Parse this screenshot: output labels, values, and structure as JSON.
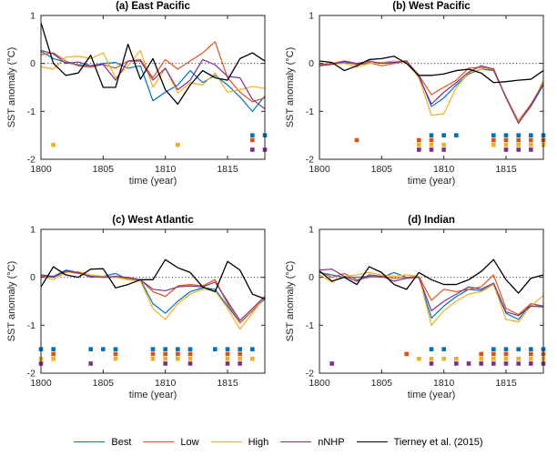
{
  "figure": {
    "ylabel": "SST anomaly (°C)",
    "xlabel": "time (year)",
    "xlim": [
      1800,
      1818
    ],
    "ylim": [
      -2,
      1
    ],
    "xticks": [
      1800,
      1805,
      1810,
      1815
    ],
    "yticks": [
      1,
      0,
      -1,
      -2
    ],
    "zero_line": 0,
    "grid": false,
    "legend_position": "bottom",
    "years": [
      1800,
      1801,
      1802,
      1803,
      1804,
      1805,
      1806,
      1807,
      1808,
      1809,
      1810,
      1811,
      1812,
      1813,
      1814,
      1815,
      1816,
      1817,
      1818
    ]
  },
  "colors": {
    "best": "#0072BD",
    "low": "#D95319",
    "high": "#EDB120",
    "nnhp": "#7E2F8E",
    "tierney": "#000000",
    "axis": "#262626"
  },
  "marker_rows": {
    "best": -1.5,
    "low": -1.6,
    "high": -1.7,
    "nnhp": -1.8
  },
  "legend": {
    "entries": [
      {
        "key": "best",
        "label": "Best"
      },
      {
        "key": "low",
        "label": "Low"
      },
      {
        "key": "high",
        "label": "High"
      },
      {
        "key": "nnhp",
        "label": "nNHP"
      },
      {
        "key": "tierney",
        "label": "Tierney et al. (2015)"
      }
    ]
  },
  "chart_data": [
    {
      "type": "line",
      "title": "(a) East Pacific",
      "series": [
        {
          "key": "best",
          "name": "Best",
          "values": [
            0.25,
            0.1,
            0.02,
            -0.03,
            -0.05,
            0.0,
            0.02,
            -0.1,
            -0.05,
            -0.78,
            -0.6,
            -0.45,
            -0.15,
            -0.4,
            -0.25,
            -0.45,
            -0.7,
            -1.0,
            -0.68
          ]
        },
        {
          "key": "low",
          "name": "Low",
          "values": [
            0.18,
            0.22,
            0.05,
            -0.05,
            -0.08,
            -0.02,
            -0.1,
            0.05,
            0.08,
            -0.3,
            0.08,
            -0.12,
            0.05,
            0.22,
            0.45,
            -0.3,
            -0.6,
            -0.8,
            -0.72
          ]
        },
        {
          "key": "high",
          "name": "High",
          "values": [
            -0.07,
            -0.12,
            0.13,
            0.15,
            0.1,
            0.22,
            -0.3,
            -0.05,
            0.27,
            -0.5,
            -0.1,
            -0.62,
            -0.4,
            -0.45,
            -0.2,
            -0.6,
            -0.55,
            -0.48,
            -0.52
          ]
        },
        {
          "key": "nnhp",
          "name": "nNHP",
          "values": [
            0.27,
            0.2,
            0.0,
            0.03,
            -0.05,
            -0.02,
            -0.35,
            0.05,
            0.05,
            -0.35,
            -0.1,
            -0.55,
            -0.35,
            0.08,
            -0.03,
            -0.27,
            -0.3,
            -0.75,
            -0.95
          ]
        },
        {
          "key": "tierney",
          "name": "Tierney et al. (2015)",
          "values": [
            0.85,
            0.0,
            -0.25,
            -0.2,
            0.17,
            -0.5,
            -0.5,
            0.4,
            -0.33,
            0.1,
            -0.55,
            -0.85,
            -0.45,
            -0.15,
            -0.3,
            -0.35,
            0.1,
            0.22,
            0.05
          ]
        }
      ],
      "significant_years": {
        "best": [
          1817,
          1818
        ],
        "low": [
          1817
        ],
        "high": [
          1801,
          1811
        ],
        "nnhp": [
          1817,
          1818
        ]
      }
    },
    {
      "type": "line",
      "title": "(b) West Pacific",
      "series": [
        {
          "key": "best",
          "name": "Best",
          "values": [
            -0.03,
            0.0,
            0.02,
            -0.02,
            0.0,
            0.02,
            0.02,
            0.05,
            -0.25,
            -0.9,
            -0.72,
            -0.45,
            -0.22,
            -0.12,
            -0.15,
            -0.7,
            -1.22,
            -0.9,
            -0.45
          ]
        },
        {
          "key": "low",
          "name": "Low",
          "values": [
            -0.03,
            0.0,
            0.05,
            -0.03,
            0.02,
            -0.05,
            0.0,
            0.05,
            -0.25,
            -0.65,
            -0.5,
            -0.35,
            -0.1,
            -0.08,
            -0.15,
            -0.7,
            -1.2,
            -0.85,
            -0.4
          ]
        },
        {
          "key": "high",
          "name": "High",
          "values": [
            -0.05,
            -0.02,
            0.0,
            -0.08,
            0.0,
            0.02,
            0.05,
            0.02,
            -0.3,
            -1.08,
            -1.05,
            -0.5,
            -0.2,
            -0.12,
            -0.1,
            -0.72,
            -1.22,
            -0.9,
            -0.35
          ]
        },
        {
          "key": "nnhp",
          "name": "nNHP",
          "values": [
            -0.05,
            -0.02,
            0.05,
            0.0,
            0.05,
            0.0,
            0.02,
            0.05,
            -0.28,
            -0.85,
            -0.6,
            -0.4,
            -0.18,
            -0.05,
            -0.12,
            -0.72,
            -1.25,
            -0.88,
            -0.42
          ]
        },
        {
          "key": "tierney",
          "name": "Tierney et al. (2015)",
          "values": [
            0.05,
            0.02,
            -0.15,
            -0.05,
            0.08,
            0.1,
            0.15,
            0.0,
            -0.25,
            -0.25,
            -0.22,
            -0.15,
            -0.12,
            -0.2,
            -0.4,
            -0.38,
            -0.35,
            -0.33,
            -0.15
          ]
        }
      ],
      "significant_years": {
        "best": [
          1809,
          1810,
          1811,
          1814,
          1815,
          1816,
          1817,
          1818
        ],
        "low": [
          1803,
          1808,
          1809,
          1814,
          1815,
          1816,
          1817,
          1818
        ],
        "high": [
          1808,
          1809,
          1810,
          1814,
          1815,
          1816,
          1817,
          1818
        ],
        "nnhp": [
          1808,
          1809,
          1810,
          1815,
          1816,
          1817
        ]
      }
    },
    {
      "type": "line",
      "title": "(c) West Atlantic",
      "series": [
        {
          "key": "best",
          "name": "Best",
          "values": [
            0.05,
            0.02,
            0.15,
            0.1,
            0.0,
            0.02,
            0.08,
            -0.05,
            -0.05,
            -0.55,
            -0.75,
            -0.5,
            -0.3,
            -0.22,
            -0.25,
            -0.6,
            -0.95,
            -0.7,
            -0.45
          ]
        },
        {
          "key": "low",
          "name": "Low",
          "values": [
            0.03,
            0.0,
            0.12,
            0.08,
            0.02,
            0.0,
            0.0,
            -0.02,
            -0.05,
            -0.3,
            -0.4,
            -0.18,
            -0.15,
            -0.18,
            -0.05,
            -0.55,
            -0.95,
            -0.7,
            -0.42
          ]
        },
        {
          "key": "high",
          "name": "High",
          "values": [
            0.02,
            -0.05,
            0.1,
            0.12,
            0.05,
            0.02,
            0.0,
            -0.05,
            -0.08,
            -0.65,
            -0.88,
            -0.55,
            -0.35,
            -0.25,
            -0.28,
            -0.65,
            -1.08,
            -0.75,
            -0.4
          ]
        },
        {
          "key": "nnhp",
          "name": "nNHP",
          "values": [
            0.05,
            0.0,
            0.13,
            0.1,
            0.02,
            0.0,
            0.02,
            0.0,
            -0.05,
            -0.25,
            -0.28,
            -0.2,
            -0.18,
            -0.2,
            -0.1,
            -0.5,
            -0.9,
            -0.65,
            -0.4
          ]
        },
        {
          "key": "tierney",
          "name": "Tierney et al. (2015)",
          "values": [
            -0.2,
            0.22,
            0.05,
            0.0,
            0.17,
            0.18,
            -0.22,
            -0.15,
            -0.05,
            -0.05,
            0.37,
            0.2,
            0.1,
            -0.2,
            -0.3,
            0.33,
            0.15,
            -0.35,
            -0.45
          ]
        }
      ],
      "significant_years": {
        "best": [
          1800,
          1801,
          1804,
          1805,
          1806,
          1809,
          1810,
          1811,
          1812,
          1814,
          1815,
          1816,
          1817
        ],
        "low": [
          1801,
          1806,
          1809,
          1810,
          1811,
          1812,
          1815,
          1816
        ],
        "high": [
          1800,
          1801,
          1806,
          1809,
          1810,
          1811,
          1812,
          1815,
          1816,
          1817
        ],
        "nnhp": [
          1800,
          1804,
          1810,
          1812,
          1815,
          1816
        ]
      }
    },
    {
      "type": "line",
      "title": "(d) Indian",
      "series": [
        {
          "key": "best",
          "name": "Best",
          "values": [
            0.1,
            0.05,
            0.0,
            0.0,
            0.02,
            0.0,
            0.1,
            0.0,
            0.0,
            -0.85,
            -0.6,
            -0.4,
            -0.25,
            -0.28,
            -0.15,
            -0.75,
            -0.88,
            -0.55,
            -0.6
          ]
        },
        {
          "key": "low",
          "name": "Low",
          "values": [
            0.12,
            0.0,
            0.08,
            -0.05,
            0.0,
            0.02,
            -0.02,
            0.0,
            0.02,
            -0.48,
            -0.25,
            -0.3,
            -0.25,
            -0.2,
            0.05,
            -0.65,
            -0.78,
            -0.55,
            -0.62
          ]
        },
        {
          "key": "high",
          "name": "High",
          "values": [
            0.05,
            -0.1,
            0.02,
            0.05,
            0.1,
            0.05,
            0.02,
            0.05,
            0.02,
            -1.0,
            -0.7,
            -0.5,
            -0.35,
            -0.3,
            -0.15,
            -0.88,
            -0.93,
            -0.6,
            -0.38
          ]
        },
        {
          "key": "nnhp",
          "name": "nNHP",
          "values": [
            0.15,
            0.17,
            0.02,
            -0.08,
            0.05,
            0.02,
            -0.08,
            -0.02,
            0.0,
            -0.7,
            -0.5,
            -0.35,
            -0.2,
            -0.25,
            -0.12,
            -0.72,
            -0.8,
            -0.6,
            -0.62
          ]
        },
        {
          "key": "tierney",
          "name": "Tierney et al. (2015)",
          "values": [
            0.13,
            -0.08,
            0.0,
            -0.15,
            0.22,
            0.1,
            -0.15,
            -0.25,
            0.1,
            -0.05,
            -0.15,
            -0.15,
            -0.05,
            0.12,
            0.37,
            -0.05,
            -0.33,
            -0.02,
            0.05
          ]
        }
      ],
      "significant_years": {
        "best": [
          1809,
          1810,
          1814,
          1815,
          1816,
          1817,
          1818
        ],
        "low": [
          1807,
          1813,
          1814,
          1815,
          1817,
          1818
        ],
        "high": [
          1808,
          1809,
          1810,
          1811,
          1813,
          1814,
          1815,
          1816,
          1817,
          1818
        ],
        "nnhp": [
          1801,
          1809,
          1811,
          1812,
          1813,
          1814,
          1815,
          1816,
          1817,
          1818
        ]
      }
    }
  ]
}
